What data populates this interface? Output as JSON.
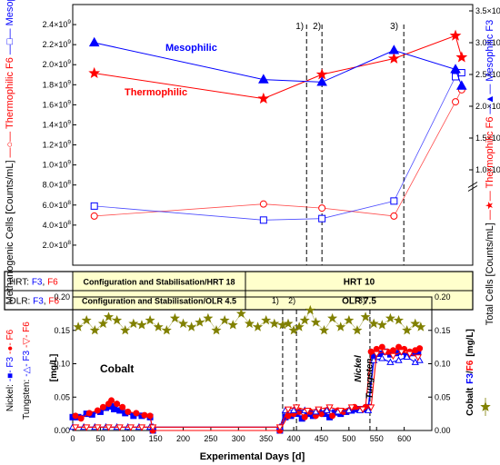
{
  "chart_data": [
    {
      "type": "line",
      "panel": "top",
      "x_domain": [
        0,
        650
      ],
      "annotations": {
        "events": [
          {
            "label": "1)",
            "x": 380
          },
          {
            "label": "2)",
            "x": 405
          },
          {
            "label": "3)",
            "x": 538
          }
        ],
        "mesophilic_label": "Mesophilic",
        "thermophilic_label": "Thermophilic"
      },
      "left_axis": {
        "label_parts": [
          {
            "text": "Methanogenic Cells [Counts/mL]",
            "color": "#000000"
          },
          {
            "text": "—○— Thermophilic F6",
            "color": "#ff0000"
          },
          {
            "text": "—□— Mesophilic F3",
            "color": "#0000ff"
          }
        ],
        "ylim": [
          0,
          2600000000
        ],
        "ticks": [
          {
            "v": 200000000,
            "m": "2.0",
            "e": "8"
          },
          {
            "v": 400000000,
            "m": "4.0",
            "e": "8"
          },
          {
            "v": 600000000,
            "m": "6.0",
            "e": "8"
          },
          {
            "v": 800000000,
            "m": "8.0",
            "e": "8"
          },
          {
            "v": 1000000000,
            "m": "1.0",
            "e": "9"
          },
          {
            "v": 1200000000,
            "m": "1.2",
            "e": "9"
          },
          {
            "v": 1400000000,
            "m": "1.4",
            "e": "9"
          },
          {
            "v": 1600000000,
            "m": "1.6",
            "e": "9"
          },
          {
            "v": 1800000000,
            "m": "1.8",
            "e": "9"
          },
          {
            "v": 2000000000,
            "m": "2.0",
            "e": "9"
          },
          {
            "v": 2200000000,
            "m": "2.2",
            "e": "9"
          },
          {
            "v": 2400000000,
            "m": "2.4",
            "e": "9"
          }
        ]
      },
      "right_axis": {
        "label_parts": [
          {
            "text": "Total Cells [Counts/mL]",
            "color": "#000000"
          },
          {
            "text": "—★— Thermophilic F6",
            "color": "#ff0000"
          },
          {
            "text": "—▲— Mesophilic F3",
            "color": "#0000ff"
          }
        ],
        "ylim": [
          -5000000000,
          36000000000
        ],
        "ticks": [
          {
            "v": 10000000000,
            "m": "1.0",
            "e": "10"
          },
          {
            "v": 15000000000,
            "m": "1.5",
            "e": "10"
          },
          {
            "v": 20000000000,
            "m": "2.0",
            "e": "10"
          },
          {
            "v": 25000000000,
            "m": "2.5",
            "e": "10"
          },
          {
            "v": 30000000000,
            "m": "3.0",
            "e": "10"
          },
          {
            "v": 35000000000,
            "m": "3.5",
            "e": "10"
          }
        ]
      },
      "series": [
        {
          "name": "Thermophilic F6",
          "axis": "left",
          "marker": "circle-open",
          "color": "#ff0000",
          "x": [
            35,
            310,
            405,
            522,
            622,
            632
          ],
          "y": [
            490000000,
            610000000,
            570000000,
            490000000,
            1630000000,
            1750000000
          ]
        },
        {
          "name": "Mesophilic F3",
          "axis": "left",
          "marker": "square-open",
          "color": "#0000ff",
          "x": [
            35,
            310,
            405,
            522,
            622,
            632
          ],
          "y": [
            590000000,
            450000000,
            465000000,
            640000000,
            1880000000,
            1920000000
          ]
        },
        {
          "name": "Thermophilic F6",
          "axis": "right",
          "marker": "star",
          "color": "#ff0000",
          "x": [
            35,
            310,
            405,
            522,
            622,
            632
          ],
          "y": [
            25200000000,
            21200000000,
            25000000000,
            27500000000,
            31100000000,
            27700000000
          ]
        },
        {
          "name": "Mesophilic F3",
          "axis": "right",
          "marker": "triangle",
          "color": "#0000ff",
          "x": [
            35,
            310,
            405,
            522,
            622,
            632
          ],
          "y": [
            30000000000,
            24200000000,
            23800000000,
            28800000000,
            25800000000,
            23200000000
          ]
        }
      ]
    },
    {
      "type": "line",
      "panel": "bottom",
      "xlabel": "Experimental Days [d]",
      "xlim": [
        0,
        650
      ],
      "xticks": [
        0,
        50,
        100,
        150,
        200,
        250,
        300,
        350,
        400,
        450,
        500,
        550,
        600
      ],
      "left_axis": {
        "label_parts": [
          {
            "text": "Nickel:",
            "color": "#000000"
          },
          {
            "text": "-■- F3",
            "color": "#0000ff"
          },
          {
            "text": "-●- F6",
            "color": "#ff0000"
          },
          {
            "text": "Tungsten:",
            "color": "#000000"
          },
          {
            "text": "-△- F3",
            "color": "#0000ff"
          },
          {
            "text": "-▽- F6",
            "color": "#ff0000"
          },
          {
            "text": "[mg/L]",
            "color": "#000000"
          }
        ],
        "ylim": [
          0,
          0.2
        ],
        "ticks": [
          "0.00",
          "0.05",
          "0.10",
          "0.15",
          "0.20"
        ]
      },
      "right_axis": {
        "label_parts": [
          {
            "text": "Cobalt",
            "color": "#000000"
          },
          {
            "text": "F3",
            "color": "#0000ff"
          },
          {
            "text": "/",
            "color": "#000000"
          },
          {
            "text": "F6",
            "color": "#ff0000"
          },
          {
            "text": "[mg/L]",
            "color": "#000000"
          }
        ],
        "ylim": [
          0,
          0.2
        ],
        "ticks": [
          "0.00",
          "0.05",
          "0.10",
          "0.15",
          "0.20"
        ]
      },
      "events": [
        {
          "label": "1)",
          "x": 380
        },
        {
          "label": "2)",
          "x": 405
        },
        {
          "label": "3)",
          "x": 538
        }
      ],
      "annotations": {
        "cobalt": "Cobalt",
        "nickel": "Nickel",
        "tungsten": "Tungsten"
      },
      "series": [
        {
          "name": "Nickel F3",
          "marker": "square",
          "color": "#0000ff",
          "x": [
            0,
            10,
            25,
            35,
            50,
            60,
            70,
            75,
            85,
            95,
            110,
            125,
            140,
            145,
            375,
            385,
            395,
            405,
            415,
            425,
            435,
            445,
            455,
            465,
            475,
            485,
            495,
            505,
            515,
            525,
            535,
            545,
            555,
            565,
            575,
            585,
            595,
            605,
            615,
            625
          ],
          "y": [
            0.02,
            0.02,
            0.025,
            0.024,
            0.028,
            0.034,
            0.036,
            0.032,
            0.03,
            0.026,
            0.022,
            0.022,
            0.02,
            0.0,
            0.0,
            0.02,
            0.022,
            0.025,
            0.018,
            0.025,
            0.022,
            0.028,
            0.025,
            0.02,
            0.027,
            0.025,
            0.028,
            0.03,
            0.032,
            0.032,
            0.035,
            0.112,
            0.115,
            0.118,
            0.114,
            0.116,
            0.118,
            0.112,
            0.116,
            0.118
          ]
        },
        {
          "name": "Nickel F6",
          "marker": "circle",
          "color": "#ff0000",
          "x": [
            5,
            15,
            30,
            45,
            55,
            65,
            70,
            80,
            90,
            100,
            115,
            130,
            140,
            145,
            375,
            390,
            400,
            410,
            420,
            430,
            440,
            450,
            460,
            470,
            480,
            490,
            500,
            510,
            520,
            530,
            540,
            550,
            560,
            570,
            580,
            590,
            600,
            610,
            620,
            628
          ],
          "y": [
            0.022,
            0.018,
            0.026,
            0.03,
            0.035,
            0.04,
            0.045,
            0.04,
            0.035,
            0.028,
            0.026,
            0.023,
            0.022,
            0.0,
            0.0,
            0.022,
            0.025,
            0.028,
            0.02,
            0.028,
            0.022,
            0.025,
            0.03,
            0.022,
            0.03,
            0.028,
            0.03,
            0.035,
            0.032,
            0.035,
            0.118,
            0.122,
            0.125,
            0.118,
            0.12,
            0.125,
            0.122,
            0.118,
            0.12,
            0.123
          ]
        },
        {
          "name": "Tungsten F3",
          "marker": "triangle-open",
          "color": "#0000ff",
          "x": [
            0,
            20,
            40,
            60,
            80,
            100,
            120,
            140,
            145,
            375,
            385,
            400,
            420,
            440,
            460,
            480,
            500,
            520,
            535,
            545,
            560,
            575,
            590,
            605,
            620,
            628
          ],
          "y": [
            0.005,
            0.005,
            0.005,
            0.005,
            0.005,
            0.005,
            0.005,
            0.005,
            0.005,
            0.005,
            0.03,
            0.03,
            0.03,
            0.028,
            0.03,
            0.028,
            0.03,
            0.03,
            0.03,
            0.105,
            0.108,
            0.102,
            0.105,
            0.11,
            0.102,
            0.105
          ]
        },
        {
          "name": "Tungsten F6",
          "marker": "triangle-down-open",
          "color": "#ff0000",
          "x": [
            5,
            25,
            45,
            65,
            85,
            105,
            125,
            145,
            375,
            390,
            405,
            425,
            445,
            465,
            485,
            505,
            525,
            540,
            550,
            565,
            580,
            595,
            610,
            625
          ],
          "y": [
            0.005,
            0.005,
            0.005,
            0.005,
            0.005,
            0.005,
            0.005,
            0.005,
            0.005,
            0.032,
            0.035,
            0.03,
            0.032,
            0.035,
            0.03,
            0.035,
            0.032,
            0.035,
            0.115,
            0.118,
            0.112,
            0.118,
            0.115,
            0.11
          ]
        },
        {
          "name": "Cobalt",
          "marker": "star",
          "color": "#808000",
          "x": [
            10,
            25,
            40,
            55,
            65,
            80,
            95,
            110,
            125,
            140,
            155,
            170,
            185,
            200,
            215,
            230,
            245,
            260,
            275,
            290,
            305,
            320,
            335,
            350,
            365,
            380,
            390,
            400,
            410,
            420,
            430,
            440,
            455,
            470,
            485,
            500,
            515,
            530,
            545,
            560,
            575,
            590,
            605,
            620,
            630
          ],
          "y": [
            0.155,
            0.165,
            0.15,
            0.16,
            0.17,
            0.165,
            0.15,
            0.16,
            0.158,
            0.165,
            0.155,
            0.15,
            0.168,
            0.16,
            0.155,
            0.162,
            0.168,
            0.15,
            0.165,
            0.158,
            0.175,
            0.16,
            0.155,
            0.165,
            0.16,
            0.158,
            0.16,
            0.15,
            0.155,
            0.165,
            0.18,
            0.162,
            0.15,
            0.168,
            0.155,
            0.165,
            0.15,
            0.17,
            0.16,
            0.158,
            0.168,
            0.165,
            0.15,
            0.16,
            0.155
          ]
        }
      ]
    }
  ],
  "legend_table": {
    "rows": [
      {
        "label_parts": [
          {
            "text": "HRT: ",
            "color": "#000000"
          },
          {
            "text": "F3",
            "color": "#0000ff"
          },
          {
            "text": ", ",
            "color": "#000000"
          },
          {
            "text": "F6",
            "color": "#ff0000"
          }
        ],
        "phase1": "Configuration and Stabilisation/HRT 18",
        "phase2": "HRT 10"
      },
      {
        "label_parts": [
          {
            "text": "OLR: ",
            "color": "#000000"
          },
          {
            "text": "F3",
            "color": "#0000ff"
          },
          {
            "text": ", ",
            "color": "#000000"
          },
          {
            "text": "F6",
            "color": "#ff0000"
          }
        ],
        "phase1": "Configuration and Stabilisation/OLR 4.5",
        "phase2": "OLR 7.5"
      }
    ],
    "fill_color": "#ffffcc"
  }
}
